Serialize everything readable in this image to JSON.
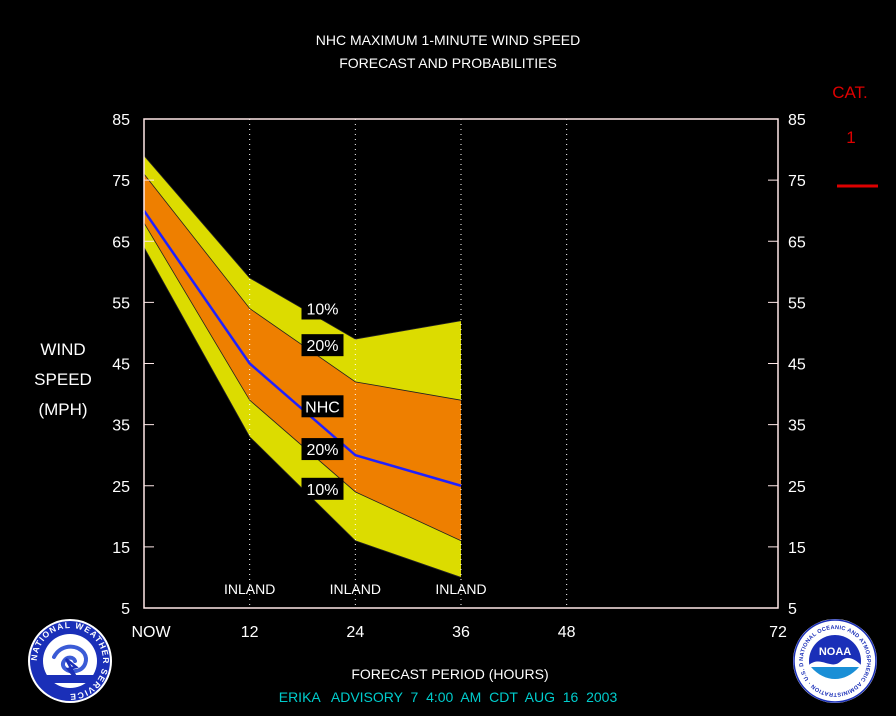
{
  "chart_data": {
    "type": "area",
    "title": "NHC MAXIMUM 1-MINUTE WIND SPEED",
    "subtitle": "FORECAST AND PROBABILITIES",
    "ylabel": [
      "WIND",
      "SPEED",
      "(MPH)"
    ],
    "xlabel": "FORECAST PERIOD (HOURS)",
    "footer": "ERIKA   ADVISORY  7  4:00  AM  CDT  AUG  16  2003",
    "category": {
      "label": "CAT.",
      "value": "1",
      "threshold_mph": 74
    },
    "ylim": [
      5,
      85
    ],
    "yticks": [
      5,
      15,
      25,
      35,
      45,
      55,
      65,
      75,
      85
    ],
    "xlim": [
      0,
      72
    ],
    "xticks": [
      {
        "value": 0,
        "label": "NOW"
      },
      {
        "value": 12,
        "label": "12"
      },
      {
        "value": 24,
        "label": "24"
      },
      {
        "value": 36,
        "label": "36"
      },
      {
        "value": 48,
        "label": "48"
      },
      {
        "value": 72,
        "label": "72"
      }
    ],
    "x": [
      0,
      12,
      24,
      36
    ],
    "inland_label": "INLAND",
    "inland_hours": [
      12,
      24,
      36
    ],
    "series": [
      {
        "name": "10%",
        "role": "upper-10",
        "values": [
          79,
          59,
          49,
          52
        ]
      },
      {
        "name": "20%",
        "role": "upper-20",
        "values": [
          76,
          54,
          42,
          39
        ]
      },
      {
        "name": "NHC",
        "role": "nhc",
        "values": [
          70,
          45,
          30,
          25
        ]
      },
      {
        "name": "20%",
        "role": "lower-20",
        "values": [
          68,
          39,
          24,
          16
        ]
      },
      {
        "name": "10%",
        "role": "lower-10",
        "values": [
          64,
          33,
          16,
          10
        ]
      }
    ],
    "band_labels": [
      {
        "text": "10%",
        "x": 18,
        "y": 54
      },
      {
        "text": "20%",
        "x": 18,
        "y": 48
      },
      {
        "text": "NHC",
        "x": 18,
        "y": 38
      },
      {
        "text": "20%",
        "x": 18,
        "y": 31
      },
      {
        "text": "10%",
        "x": 18,
        "y": 24.5
      }
    ],
    "colors": {
      "outer_band": "#dcdc00",
      "inner_band": "#ee7f00",
      "nhc_line": "#2020ff",
      "category": "#dd0000",
      "footer": "#00cccc",
      "frame": "#ffe8e8"
    }
  },
  "logos": {
    "nws": "NATIONAL WEATHER SERVICE",
    "noaa": "NOAA",
    "noaa_ring": "NATIONAL OCEANIC AND ATMOSPHERIC ADMINISTRATION · U.S. DEPARTMENT OF COMMERCE"
  }
}
